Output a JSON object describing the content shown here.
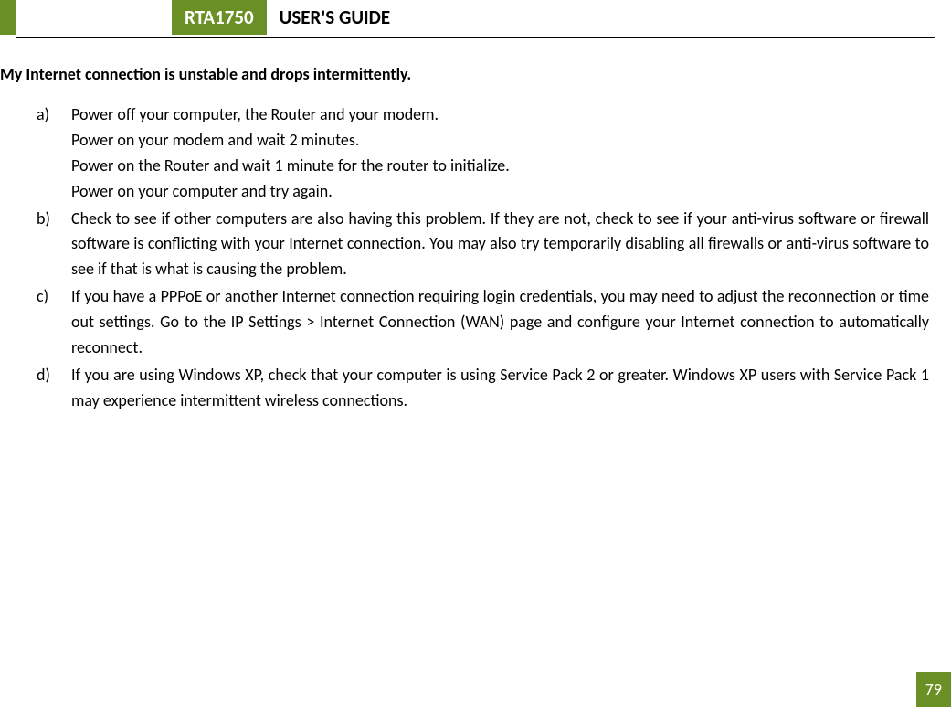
{
  "header": {
    "model": "RTA1750",
    "title": "USER'S GUIDE",
    "accent_color": "#6a8f24",
    "text_color": "#ffffff"
  },
  "section": {
    "title": "My Internet connection is unstable and drops intermittently."
  },
  "items": [
    {
      "label": "a)",
      "lines": [
        "Power off your computer, the Router and your modem.",
        "Power on your modem and wait 2 minutes.",
        "Power on the Router and wait 1 minute for the router to initialize.",
        "Power on your computer and try again."
      ]
    },
    {
      "label": "b)",
      "text": "Check to see if other computers are also having this problem. If they are not, check to see if your anti-virus software or firewall software is conflicting with your Internet connection. You may also try temporarily disabling all firewalls or anti-virus software to see if that is what is causing the problem."
    },
    {
      "label": "c)",
      "text": "If you have a PPPoE or another Internet connection requiring login credentials, you may need to adjust the reconnection or time out settings. Go to the IP Settings > Internet Connection (WAN) page and configure your Internet connection to automatically reconnect."
    },
    {
      "label": "d)",
      "text": "If you are using Windows XP, check that your computer is using Service Pack 2 or greater. Windows XP users with Service Pack 1 may experience intermittent wireless connections."
    }
  ],
  "page_number": "79"
}
